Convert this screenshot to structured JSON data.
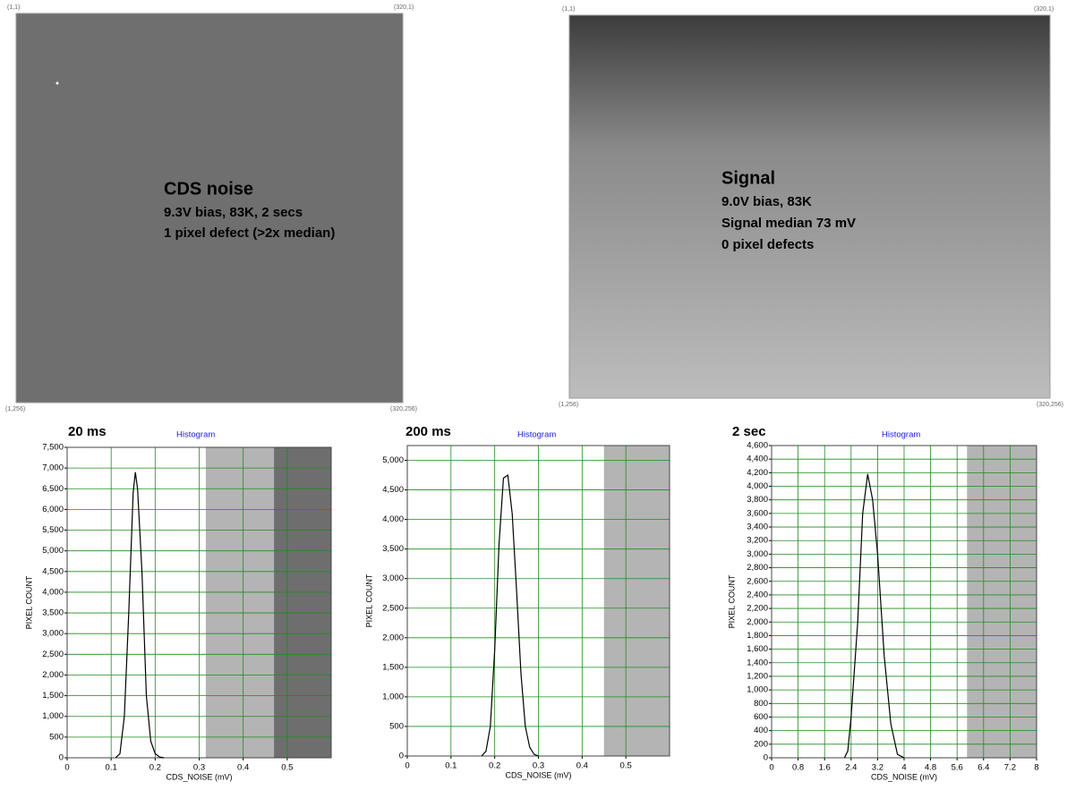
{
  "images": [
    {
      "corners": [
        "(1,1)",
        "(320,1)",
        "(1,256)",
        "(320,256)"
      ],
      "title": "CDS noise",
      "lines": [
        "9.3V bias, 83K, 2 secs",
        "1 pixel defect (>2x median)"
      ]
    },
    {
      "corners": [
        "(1,1)",
        "(320,1)",
        "(1,256)",
        "(320,256)"
      ],
      "title": "Signal",
      "lines": [
        "9.0V bias, 83K",
        "Signal median 73 mV",
        "0 pixel defects"
      ]
    }
  ],
  "chart_data": [
    {
      "type": "line",
      "title": "20 ms",
      "subtitle": "Histogram",
      "xlabel": "CDS_NOISE (mV)",
      "ylabel": "PIXEL COUNT",
      "x": [
        0.11,
        0.12,
        0.13,
        0.14,
        0.15,
        0.155,
        0.16,
        0.17,
        0.18,
        0.19,
        0.2,
        0.21,
        0.22
      ],
      "values": [
        0,
        100,
        1000,
        3500,
        6400,
        6900,
        6500,
        4500,
        1500,
        400,
        100,
        20,
        0
      ],
      "color": "#000000",
      "grid": true,
      "bands": [
        {
          "from": 0.315,
          "to": 0.47,
          "color": "#b4b4b4"
        },
        {
          "from": 0.47,
          "to": 0.6,
          "color": "#6e6e6e"
        }
      ],
      "xlim": [
        0,
        0.6
      ],
      "xticks": [
        0,
        0.1,
        0.2,
        0.3,
        0.4,
        0.5
      ],
      "ylim": [
        0,
        7500
      ],
      "yticks": [
        0,
        500,
        {
          "value": 1000,
          "label": "1,000"
        },
        {
          "value": 1500,
          "label": "1,500"
        },
        {
          "value": 2000,
          "label": "2,000"
        },
        {
          "value": 2500,
          "label": "2,500"
        },
        {
          "value": 3000,
          "label": "3,000"
        },
        {
          "value": 3500,
          "label": "3,500"
        },
        {
          "value": 4000,
          "label": "4,000"
        },
        {
          "value": 4500,
          "label": "4,500"
        },
        {
          "value": 5000,
          "label": "5,000"
        },
        {
          "value": 5500,
          "label": "5,500"
        },
        {
          "value": 6000,
          "label": "6,000"
        },
        {
          "value": 6500,
          "label": "6,500"
        },
        {
          "value": 7000,
          "label": "7,000"
        },
        {
          "value": 7500,
          "label": "7,500"
        }
      ]
    },
    {
      "type": "line",
      "title": "200 ms",
      "subtitle": "Histogram",
      "xlabel": "CDS_NOISE (mV)",
      "ylabel": "PIXEL COUNT",
      "x": [
        0.17,
        0.18,
        0.19,
        0.2,
        0.21,
        0.22,
        0.23,
        0.24,
        0.25,
        0.26,
        0.27,
        0.28,
        0.29,
        0.3
      ],
      "values": [
        0,
        80,
        500,
        1800,
        3600,
        4700,
        4750,
        4100,
        2800,
        1400,
        500,
        150,
        30,
        0
      ],
      "color": "#000000",
      "grid": true,
      "bands": [
        {
          "from": 0.45,
          "to": 0.6,
          "color": "#b4b4b4"
        }
      ],
      "xlim": [
        0,
        0.6
      ],
      "xticks": [
        0,
        0.1,
        0.2,
        0.3,
        0.4,
        0.5
      ],
      "ylim": [
        0,
        5250
      ],
      "yticks": [
        0,
        500,
        {
          "value": 1000,
          "label": "1,000"
        },
        {
          "value": 1500,
          "label": "1,500"
        },
        {
          "value": 2000,
          "label": "2,000"
        },
        {
          "value": 2500,
          "label": "2,500"
        },
        {
          "value": 3000,
          "label": "3,000"
        },
        {
          "value": 3500,
          "label": "3,500"
        },
        {
          "value": 4000,
          "label": "4,000"
        },
        {
          "value": 4500,
          "label": "4,500"
        },
        {
          "value": 5000,
          "label": "5,000"
        }
      ]
    },
    {
      "type": "line",
      "title": "2 sec",
      "subtitle": "Histogram",
      "xlabel": "CDS_NOISE (mV)",
      "ylabel": "PIXEL COUNT",
      "x": [
        2.2,
        2.3,
        2.4,
        2.6,
        2.75,
        2.9,
        3.05,
        3.2,
        3.4,
        3.6,
        3.8,
        4
      ],
      "values": [
        0,
        100,
        600,
        2000,
        3600,
        4180,
        3800,
        3000,
        1500,
        500,
        50,
        0
      ],
      "color": "#000000",
      "grid": true,
      "bands": [
        {
          "from": 5.9,
          "to": 8,
          "color": "#b4b4b4"
        }
      ],
      "xlim": [
        0,
        8
      ],
      "xticks": [
        0,
        0.8,
        1.6,
        2.4,
        3.2,
        4,
        4.8,
        5.6,
        6.4,
        7.2,
        8
      ],
      "ylim": [
        0,
        4600
      ],
      "yticks": [
        0,
        200,
        400,
        600,
        800,
        {
          "value": 1000,
          "label": "1,000"
        },
        {
          "value": 1200,
          "label": "1,200"
        },
        {
          "value": 1400,
          "label": "1,400"
        },
        {
          "value": 1600,
          "label": "1,600"
        },
        {
          "value": 1800,
          "label": "1,800"
        },
        {
          "value": 2000,
          "label": "2,000"
        },
        {
          "value": 2200,
          "label": "2,200"
        },
        {
          "value": 2400,
          "label": "2,400"
        },
        {
          "value": 2600,
          "label": "2,600"
        },
        {
          "value": 2800,
          "label": "2,800"
        },
        {
          "value": 3000,
          "label": "3,000"
        },
        {
          "value": 3200,
          "label": "3,200"
        },
        {
          "value": 3400,
          "label": "3,400"
        },
        {
          "value": 3600,
          "label": "3,600"
        },
        {
          "value": 3800,
          "label": "3,800"
        },
        {
          "value": 4000,
          "label": "4,000"
        },
        {
          "value": 4200,
          "label": "4,200"
        },
        {
          "value": 4400,
          "label": "4,400"
        },
        {
          "value": 4600,
          "label": "4,600"
        }
      ]
    }
  ]
}
